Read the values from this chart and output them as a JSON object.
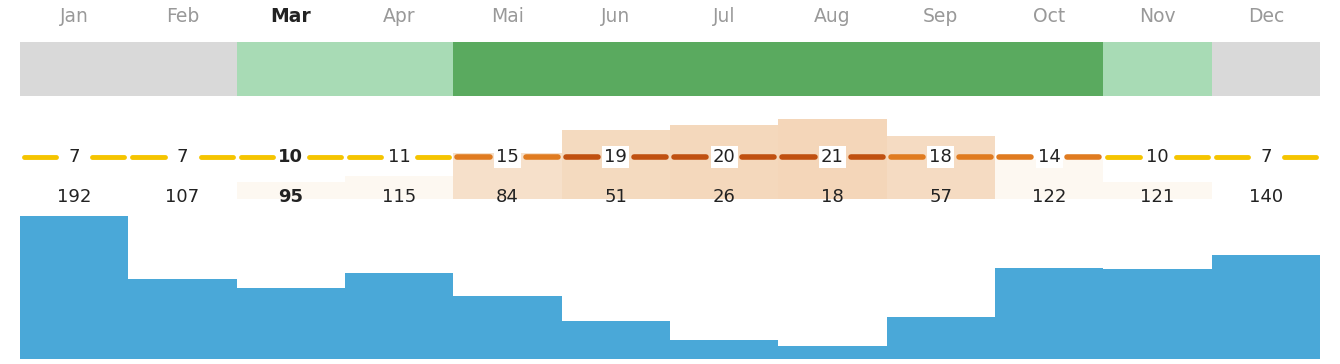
{
  "months": [
    "Jan",
    "Feb",
    "Mar",
    "Apr",
    "Mai",
    "Jun",
    "Jul",
    "Aug",
    "Sep",
    "Oct",
    "Nov",
    "Dec"
  ],
  "bold_month": "Mar",
  "season_colors": [
    "#d9d9d9",
    "#d9d9d9",
    "#a8dbb5",
    "#a8dbb5",
    "#5aaa5f",
    "#5aaa5f",
    "#5aaa5f",
    "#5aaa5f",
    "#5aaa5f",
    "#5aaa5f",
    "#a8dbb5",
    "#d9d9d9"
  ],
  "temp_values": [
    7,
    7,
    10,
    11,
    15,
    19,
    20,
    21,
    18,
    14,
    10,
    7
  ],
  "temp_bold": [
    false,
    false,
    true,
    false,
    false,
    false,
    false,
    false,
    false,
    false,
    false,
    false
  ],
  "precip_values": [
    192,
    107,
    95,
    115,
    84,
    51,
    26,
    18,
    57,
    122,
    121,
    140
  ],
  "precip_bold": [
    false,
    false,
    true,
    false,
    false,
    false,
    false,
    false,
    false,
    false,
    false,
    false
  ],
  "yellow_line_color": "#f5c400",
  "orange_line_color": "#e07b20",
  "dark_orange_color": "#c05010",
  "warm_bg_color": "#f0c8a0",
  "warm_bg_light": "#faebd7",
  "precip_bar_color": "#4aa8d8",
  "bg_color": "#ffffff",
  "label_color": "#999999",
  "bold_label_color": "#222222",
  "temp_threshold_orange": 13,
  "temp_threshold_dark_orange": 19
}
